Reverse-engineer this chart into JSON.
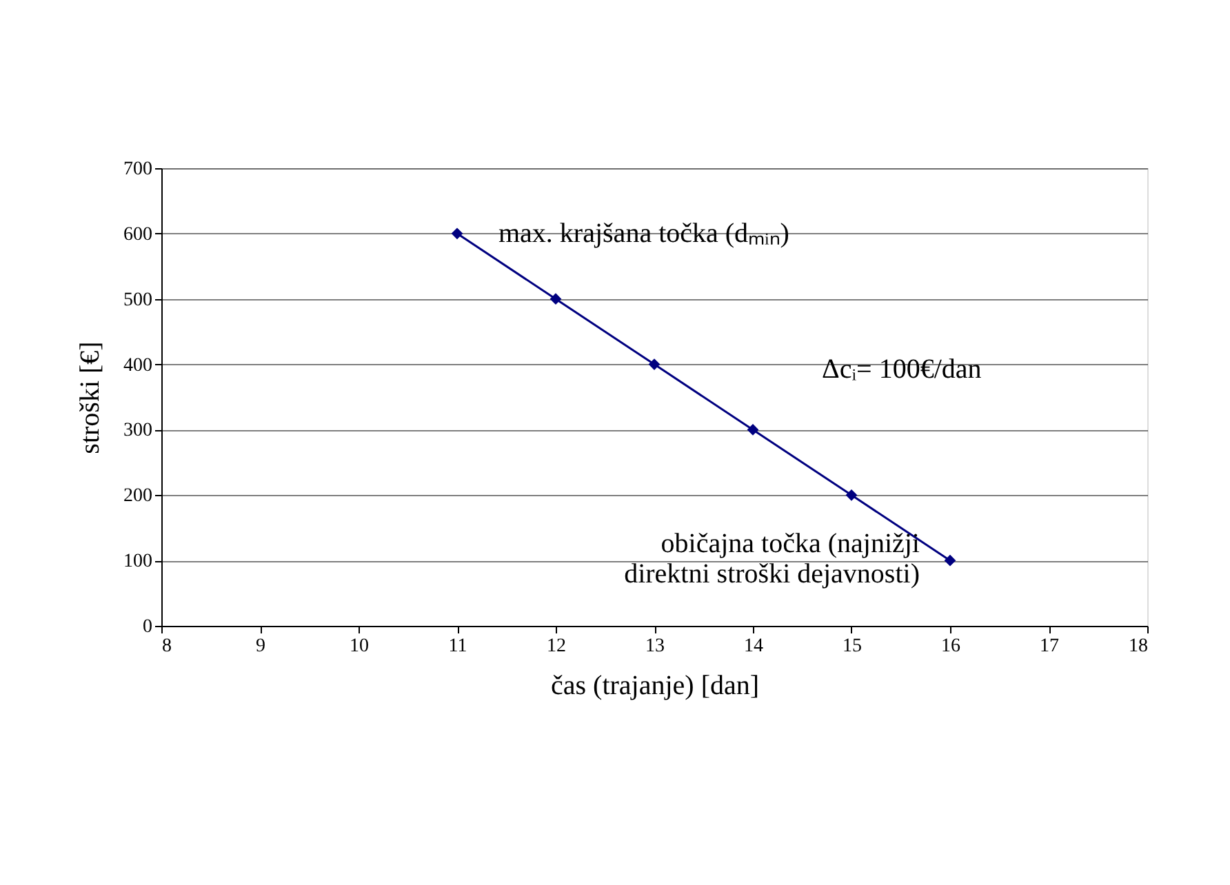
{
  "chart_data": {
    "type": "line",
    "xlabel": "čas (trajanje) [dan]",
    "ylabel": "stroški [€]",
    "x": [
      11,
      12,
      13,
      14,
      15,
      16
    ],
    "series": [
      {
        "color": "#000080",
        "values": [
          600,
          500,
          400,
          300,
          200,
          100
        ]
      }
    ],
    "xlim": [
      8,
      18
    ],
    "xticks": [
      8,
      9,
      10,
      11,
      12,
      13,
      14,
      15,
      16,
      17,
      18
    ],
    "ylim": [
      0,
      700
    ],
    "yticks": [
      0,
      100,
      200,
      300,
      400,
      500,
      600,
      700
    ],
    "grid": "y",
    "marker": "diamond",
    "annotations": [
      {
        "text": "max. krajšana točka (dₘᵢₙ)",
        "x": 11,
        "y": 600
      },
      "Δcᵢ= 100€/dan",
      {
        "text": "običajna točka (najnižji\ndirektni stroški dejavnosti)",
        "x": 16,
        "y": 100
      }
    ]
  }
}
